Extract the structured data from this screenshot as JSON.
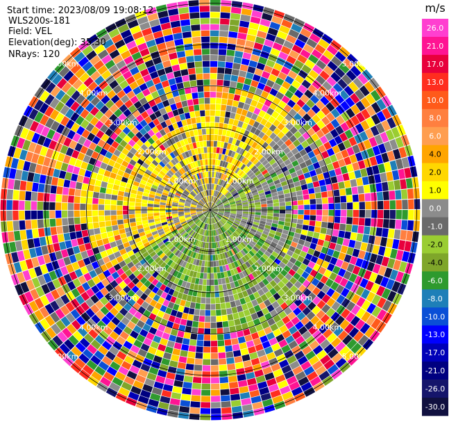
{
  "header": {
    "start_time": "Start time: 2023/08/09 19:08:12",
    "instrument": "WLS200s-181",
    "field": "Field: VEL",
    "elevation": "Elevation(deg): 35.30",
    "nrays": "NRays: 120"
  },
  "chart_data": {
    "type": "heatmap",
    "projection": "polar-ppi",
    "field": "VEL",
    "units": "m/s",
    "nrays": 120,
    "elevation_deg": 35.3,
    "range_rings_km": [
      1.0,
      2.0,
      3.0,
      4.0,
      5.0
    ],
    "ring_labels": [
      "1.00km",
      "2.00km",
      "3.00km",
      "4.00km",
      "5.00km"
    ],
    "colorbar": {
      "title": "m/s",
      "ticks": [
        "26.0",
        "21.0",
        "17.0",
        "13.0",
        "10.0",
        "8.0",
        "6.0",
        "4.0",
        "2.0",
        "1.0",
        "0.0",
        "-1.0",
        "-2.0",
        "-4.0",
        "-6.0",
        "-8.0",
        "-10.0",
        "-13.0",
        "-17.0",
        "-21.0",
        "-26.0",
        "-30.0"
      ],
      "colors": [
        "#ff3fd0",
        "#ff1493",
        "#e8003c",
        "#ff2d1f",
        "#ff5a1a",
        "#ff7f3f",
        "#ff9e4f",
        "#ffa500",
        "#ffd700",
        "#ffff00",
        "#8c8c8c",
        "#6a6a6a",
        "#9acd32",
        "#7fa62a",
        "#2e9a2e",
        "#1e7fb8",
        "#0a4fd6",
        "#0000ff",
        "#0000b8",
        "#000080",
        "#15156b",
        "#10103f"
      ]
    }
  }
}
